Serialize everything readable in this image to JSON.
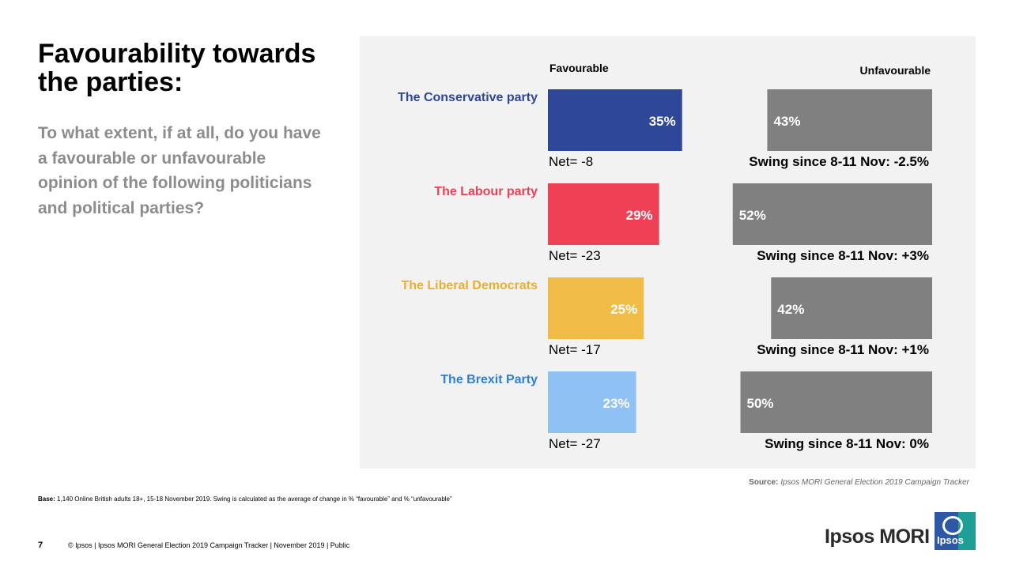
{
  "slide": {
    "title": "Favourability towards the parties:",
    "question": "To what extent, if at all, do you have a favourable or unfavourable opinion of the following politicians and political parties?",
    "page_number": "7",
    "footer": "© Ipsos | Ipsos MORI General Election 2019 Campaign Tracker | November 2019 | Public",
    "base_label": "Base:",
    "base_text": "1,140 Online British adults 18+, 15-18 November 2019. Swing is calculated as the average of change in % “favourable” and % “unfavourable”",
    "source_label": "Source:",
    "source_text": "Ipsos MORI General Election 2019 Campaign Tracker",
    "logo_text": "Ipsos MORI",
    "logo_mark_text": "Ipsos"
  },
  "chart_data": {
    "type": "bar",
    "orientation": "horizontal",
    "column_headers": [
      "Favourable",
      "Unfavourable"
    ],
    "categories": [
      "The Conservative party",
      "The Labour party",
      "The Liberal Democrats",
      "The Brexit Party"
    ],
    "category_colors": [
      "#2e4798",
      "#ef4055",
      "#f0bc45",
      "#8fc1f5"
    ],
    "label_colors": [
      "#2e4798",
      "#ef4055",
      "#e6b02e",
      "#2f7fd6"
    ],
    "unfavourable_color": "#808080",
    "series": [
      {
        "name": "Favourable",
        "values": [
          35,
          29,
          25,
          23
        ],
        "labels": [
          "35%",
          "29%",
          "25%",
          "23%"
        ]
      },
      {
        "name": "Unfavourable",
        "values": [
          43,
          52,
          42,
          50
        ],
        "labels": [
          "43%",
          "52%",
          "42%",
          "50%"
        ]
      }
    ],
    "net_labels": [
      "Net= -8",
      "Net= -23",
      "Net= -17",
      "Net= -27"
    ],
    "swing_labels": [
      "Swing since 8-11 Nov: -2.5%",
      "Swing since 8-11 Nov: +3%",
      "Swing since 8-11 Nov: +1%",
      "Swing since 8-11 Nov: 0%"
    ],
    "xlim": [
      0,
      60
    ]
  }
}
